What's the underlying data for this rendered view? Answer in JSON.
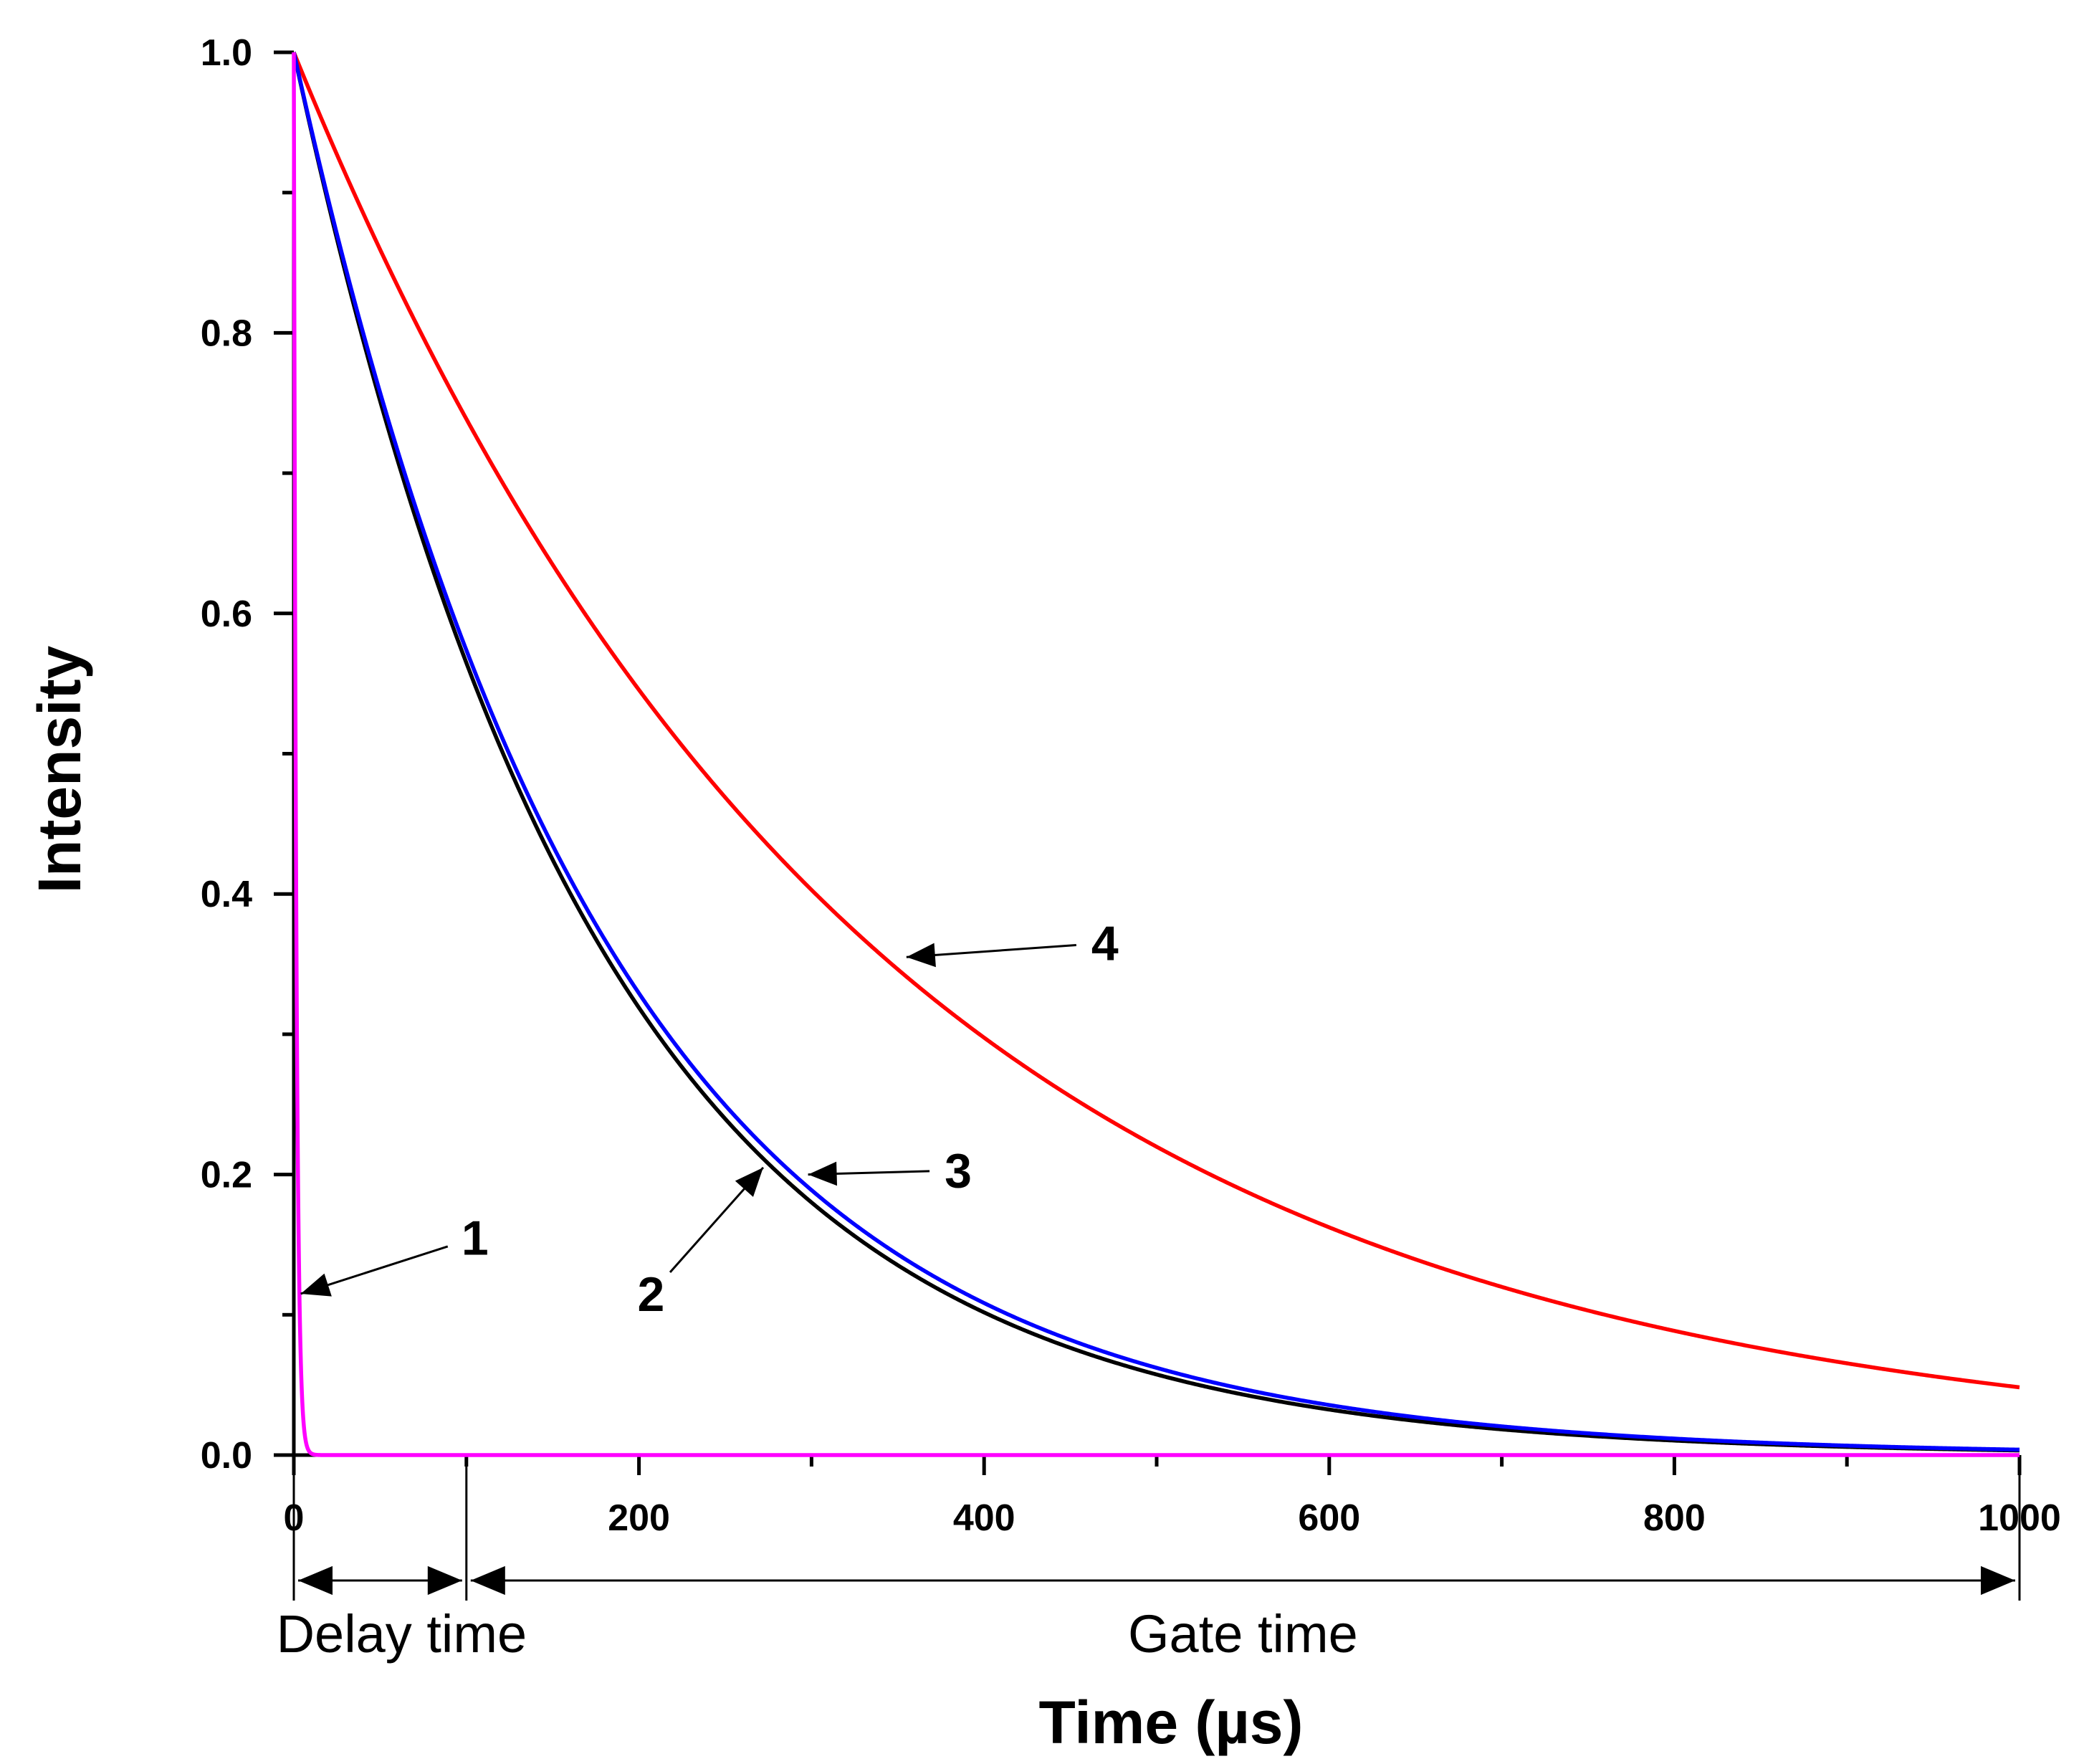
{
  "chart_data": {
    "type": "line",
    "title": "",
    "xlabel": "Time (µs)",
    "ylabel": "Intensity",
    "xlim": [
      0,
      1000
    ],
    "ylim": [
      0,
      1.0
    ],
    "x_ticks": [
      {
        "value": 0,
        "label": "0"
      },
      {
        "value": 200,
        "label": "200"
      },
      {
        "value": 400,
        "label": "400"
      },
      {
        "value": 600,
        "label": "600"
      },
      {
        "value": 800,
        "label": "800"
      },
      {
        "value": 1000,
        "label": "1000"
      }
    ],
    "x_minor_ticks": [
      100,
      300,
      500,
      700,
      900
    ],
    "y_ticks": [
      {
        "value": 0.0,
        "label": "0.0"
      },
      {
        "value": 0.2,
        "label": "0.2"
      },
      {
        "value": 0.4,
        "label": "0.4"
      },
      {
        "value": 0.6,
        "label": "0.6"
      },
      {
        "value": 0.8,
        "label": "0.8"
      },
      {
        "value": 1.0,
        "label": "1.0"
      }
    ],
    "y_minor_ticks": [
      0.1,
      0.3,
      0.5,
      0.7,
      0.9
    ],
    "grid": false,
    "series": [
      {
        "name": "1",
        "color": "#ff00ff",
        "model": "exp_decay",
        "amplitude": 1.0,
        "lifetime_us": 1.5
      },
      {
        "name": "2",
        "color": "#000000",
        "model": "exp_decay",
        "amplitude": 1.0,
        "lifetime_us": 175
      },
      {
        "name": "3",
        "color": "#0000ff",
        "model": "exp_decay",
        "amplitude": 1.0,
        "lifetime_us": 180
      },
      {
        "name": "4",
        "color": "#ff0000",
        "model": "exp_decay",
        "amplitude": 1.0,
        "lifetime_us": 330
      }
    ],
    "annotations": [
      {
        "text": "1",
        "series": "1",
        "point_x": 4,
        "point_y": 0.115,
        "label_x": 105,
        "label_y": 0.155
      },
      {
        "text": "2",
        "series": "2",
        "point_x": 272,
        "point_y": 0.205,
        "label_x": 207,
        "label_y": 0.115
      },
      {
        "text": "3",
        "series": "3",
        "point_x": 298,
        "point_y": 0.2,
        "label_x": 385,
        "label_y": 0.203
      },
      {
        "text": "4",
        "series": "4",
        "point_x": 355,
        "point_y": 0.355,
        "label_x": 470,
        "label_y": 0.365
      }
    ],
    "spans": [
      {
        "label": "Delay time",
        "x_start": 0,
        "x_end": 100
      },
      {
        "label": "Gate time",
        "x_start": 100,
        "x_end": 1000
      }
    ]
  }
}
